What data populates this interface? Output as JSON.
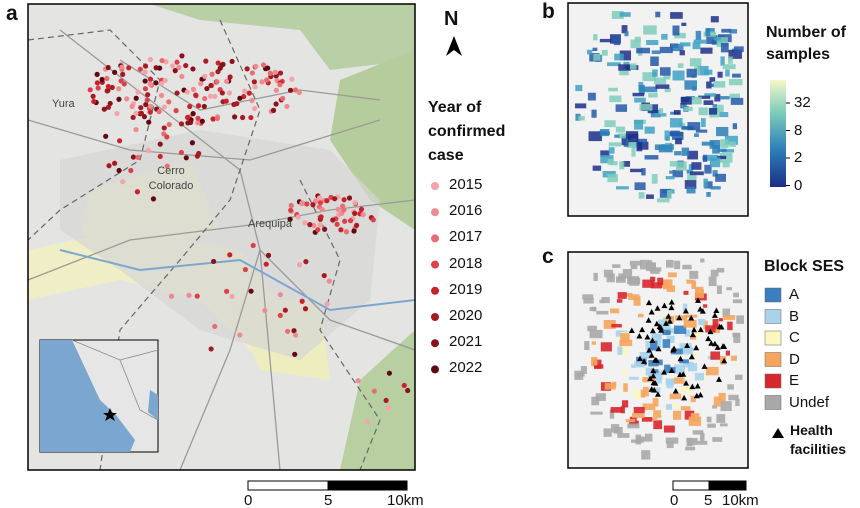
{
  "panel_a": {
    "label": "a",
    "places": [
      "Yura",
      "Cerro Colorado",
      "Arequipa"
    ],
    "north": "N",
    "legend": {
      "title": "Year of confirmed case",
      "items": [
        {
          "label": "2015",
          "color": "#f4a3a8"
        },
        {
          "label": "2016",
          "color": "#ee8a90"
        },
        {
          "label": "2017",
          "color": "#e86d73"
        },
        {
          "label": "2018",
          "color": "#dc4048"
        },
        {
          "label": "2019",
          "color": "#c8232c"
        },
        {
          "label": "2020",
          "color": "#a81a22"
        },
        {
          "label": "2021",
          "color": "#86121a"
        },
        {
          "label": "2022",
          "color": "#5e0a10"
        }
      ]
    },
    "scale": [
      "0",
      "5",
      "10km"
    ]
  },
  "panel_b": {
    "label": "b",
    "colorbar": {
      "title": "Number of samples",
      "ticks": [
        "32",
        "8",
        "2",
        "0"
      ]
    }
  },
  "panel_c": {
    "label": "c",
    "legend": {
      "title": "Block SES",
      "items": [
        {
          "label": "A",
          "color": "#3a7fbf"
        },
        {
          "label": "B",
          "color": "#a9d3ea"
        },
        {
          "label": "C",
          "color": "#fbf7c0"
        },
        {
          "label": "D",
          "color": "#f5a55e"
        },
        {
          "label": "E",
          "color": "#d7262c"
        },
        {
          "label": "Undef",
          "color": "#a8a8a8"
        }
      ],
      "facilities": "Health facilities"
    },
    "scale": [
      "0",
      "5",
      "10km"
    ]
  }
}
